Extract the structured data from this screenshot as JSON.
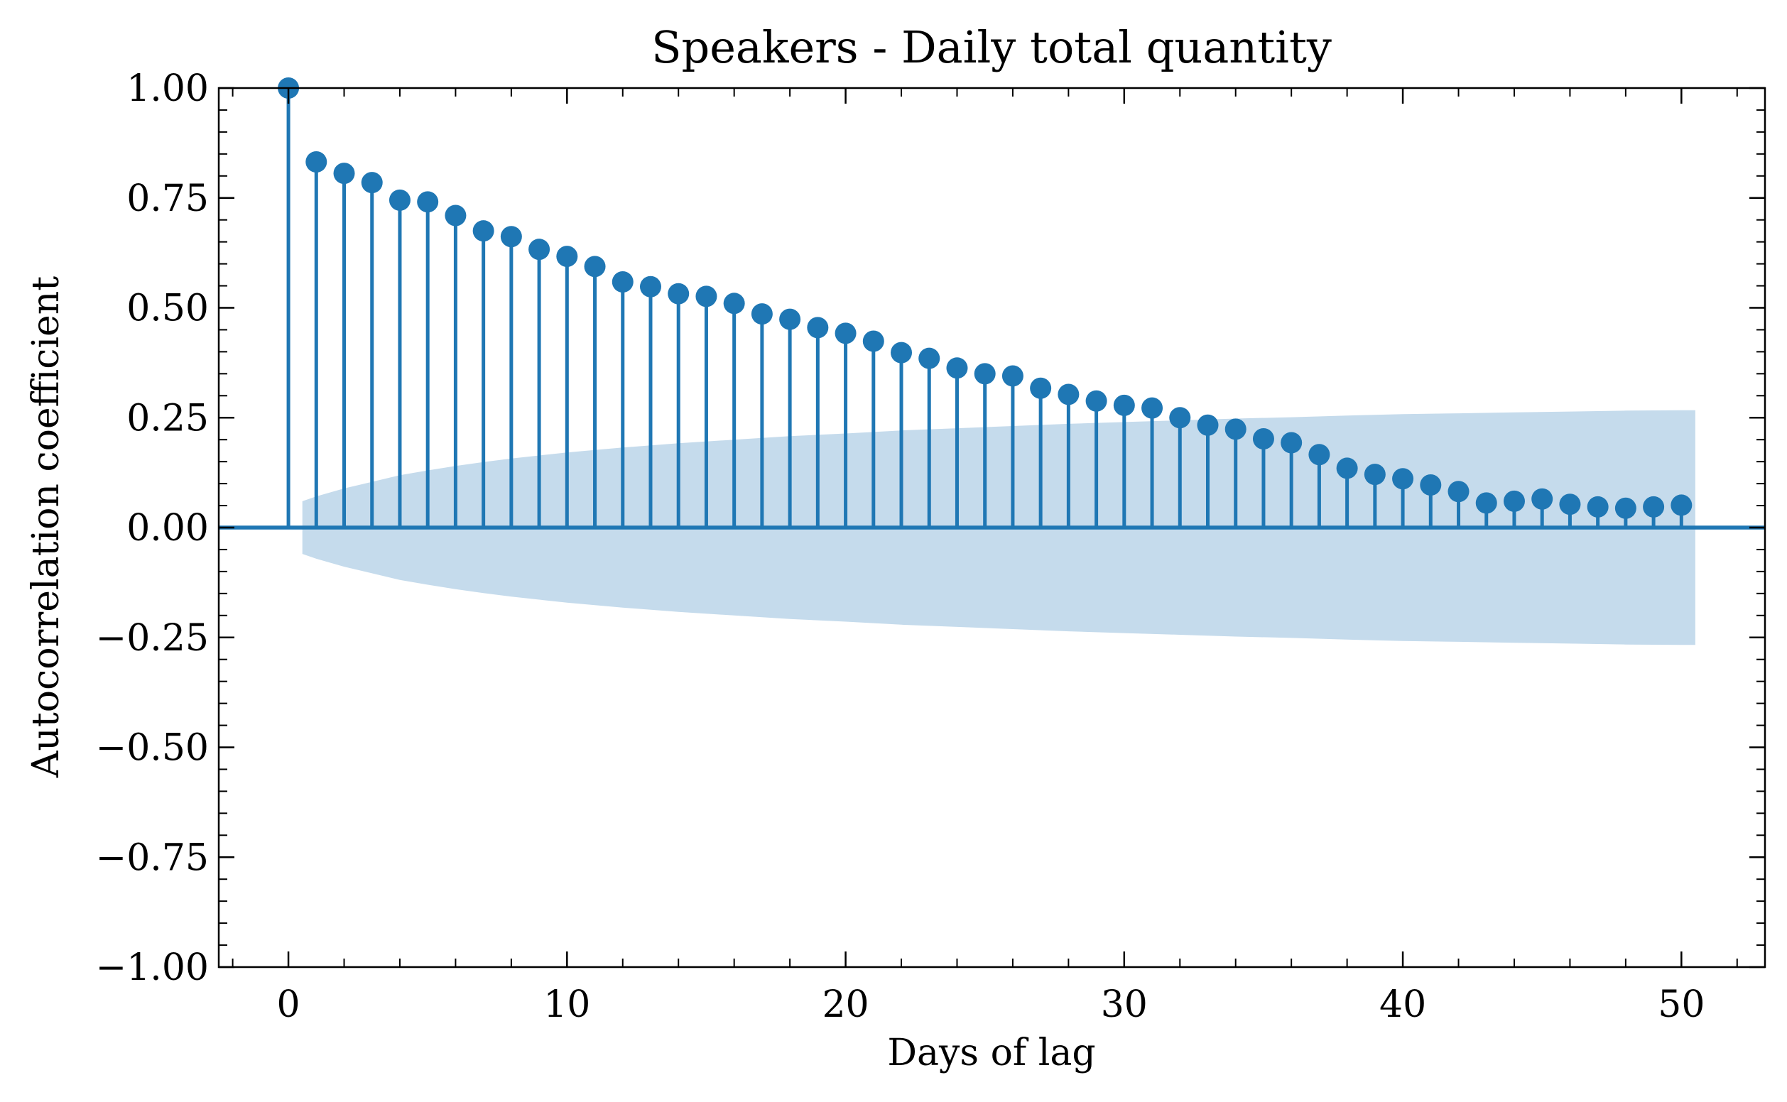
{
  "chart_data": {
    "type": "stem",
    "title": "Speakers - Daily total quantity",
    "xlabel": "Days of lag",
    "ylabel": "Autocorrelation coefficient",
    "xlim": [
      -2.5,
      53
    ],
    "ylim": [
      -1.0,
      1.0
    ],
    "x_ticks": [
      0,
      10,
      20,
      30,
      40,
      50
    ],
    "x_tick_labels": [
      "0",
      "10",
      "20",
      "30",
      "40",
      "50"
    ],
    "y_ticks": [
      -1.0,
      -0.75,
      -0.5,
      -0.25,
      0.0,
      0.25,
      0.5,
      0.75,
      1.0
    ],
    "y_tick_labels": [
      "−1.00",
      "−0.75",
      "−0.50",
      "−0.25",
      "0.00",
      "0.25",
      "0.50",
      "0.75",
      "1.00"
    ],
    "series": [
      {
        "lags": [
          0,
          1,
          2,
          3,
          4,
          5,
          6,
          7,
          8,
          9,
          10,
          11,
          12,
          13,
          14,
          15,
          16,
          17,
          18,
          19,
          20,
          21,
          22,
          23,
          24,
          25,
          26,
          27,
          28,
          29,
          30,
          31,
          32,
          33,
          34,
          35,
          36,
          37,
          38,
          39,
          40,
          41,
          42,
          43,
          44,
          45,
          46,
          47,
          48,
          49,
          50
        ],
        "values": [
          1.0,
          0.832,
          0.806,
          0.785,
          0.745,
          0.741,
          0.71,
          0.675,
          0.662,
          0.633,
          0.617,
          0.594,
          0.559,
          0.548,
          0.532,
          0.526,
          0.51,
          0.486,
          0.474,
          0.455,
          0.442,
          0.424,
          0.398,
          0.385,
          0.363,
          0.35,
          0.345,
          0.317,
          0.303,
          0.288,
          0.278,
          0.272,
          0.25,
          0.233,
          0.224,
          0.202,
          0.193,
          0.166,
          0.135,
          0.121,
          0.111,
          0.097,
          0.082,
          0.056,
          0.06,
          0.065,
          0.053,
          0.047,
          0.044,
          0.047,
          0.051
        ]
      }
    ],
    "confidence_band": {
      "lags": [
        0.5,
        1,
        2,
        3,
        4,
        5,
        6,
        7,
        8,
        9,
        10,
        12,
        14,
        16,
        18,
        20,
        22,
        24,
        26,
        28,
        30,
        32,
        34,
        36,
        38,
        40,
        42,
        44,
        46,
        48,
        50,
        50.5
      ],
      "upper": [
        0.06,
        0.071,
        0.089,
        0.104,
        0.119,
        0.13,
        0.14,
        0.149,
        0.157,
        0.164,
        0.171,
        0.182,
        0.192,
        0.2,
        0.208,
        0.214,
        0.221,
        0.226,
        0.231,
        0.236,
        0.24,
        0.244,
        0.248,
        0.251,
        0.255,
        0.258,
        0.26,
        0.262,
        0.264,
        0.266,
        0.267,
        0.267
      ]
    },
    "colors": {
      "stem": "#1f77b4",
      "band": "#c5dbec",
      "zero_line": "#1f77b4"
    },
    "grid": false,
    "legend": "none"
  }
}
